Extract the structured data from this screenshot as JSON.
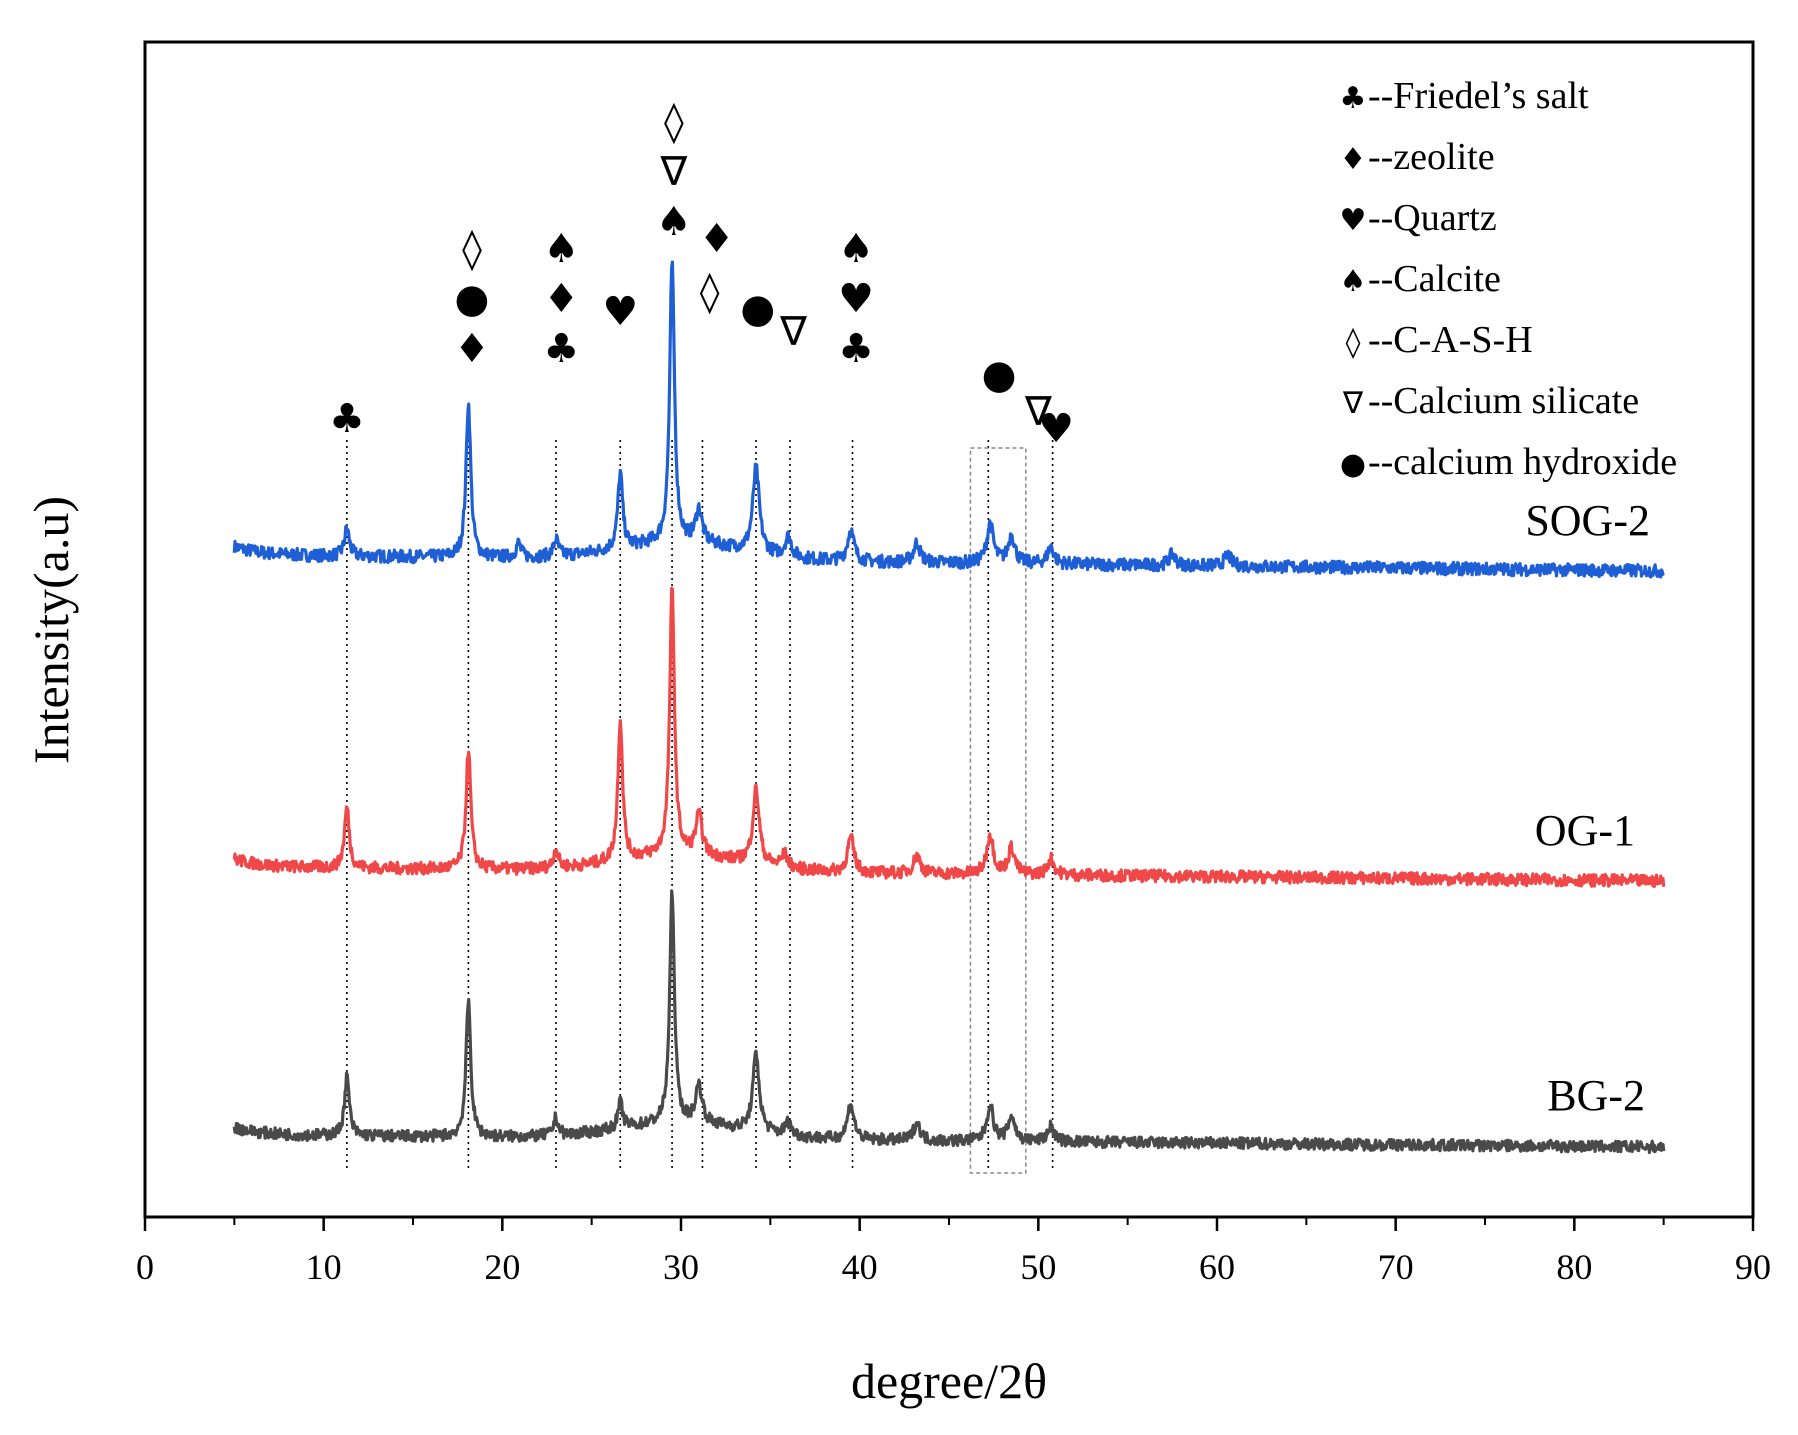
{
  "chart_data": {
    "type": "line",
    "title": "",
    "xlabel": "degree/2θ",
    "ylabel": "Intensity(a.u)",
    "xlim": [
      0,
      90
    ],
    "xticks": [
      0,
      10,
      20,
      30,
      40,
      50,
      60,
      70,
      80,
      90
    ],
    "xtick_labels": [
      "0",
      "10",
      "20",
      "30",
      "40",
      "50",
      "60",
      "70",
      "80",
      "90"
    ],
    "x_range": [
      5,
      85
    ],
    "colors": {
      "SOG-2": "#1f5fd6",
      "OG-1": "#f04848",
      "BG-2": "#4a4a4a",
      "axis": "#000000",
      "guide": "#000000",
      "box": "#888888"
    },
    "series": [
      {
        "name": "SOG-2",
        "peaks": [
          [
            11.3,
            0.1
          ],
          [
            18.1,
            0.55
          ],
          [
            20.9,
            0.05
          ],
          [
            23.0,
            0.06
          ],
          [
            26.6,
            0.27
          ],
          [
            29.5,
            1.0
          ],
          [
            31.0,
            0.12
          ],
          [
            34.2,
            0.3
          ],
          [
            36.0,
            0.07
          ],
          [
            39.5,
            0.11
          ],
          [
            43.2,
            0.07
          ],
          [
            47.3,
            0.14
          ],
          [
            48.5,
            0.1
          ],
          [
            50.7,
            0.06
          ],
          [
            57.5,
            0.04
          ],
          [
            60.6,
            0.04
          ]
        ]
      },
      {
        "name": "OG-1",
        "peaks": [
          [
            11.3,
            0.23
          ],
          [
            18.1,
            0.45
          ],
          [
            23.0,
            0.07
          ],
          [
            26.6,
            0.53
          ],
          [
            29.5,
            1.0
          ],
          [
            31.0,
            0.15
          ],
          [
            34.2,
            0.28
          ],
          [
            35.8,
            0.05
          ],
          [
            39.5,
            0.13
          ],
          [
            43.2,
            0.07
          ],
          [
            47.3,
            0.15
          ],
          [
            48.5,
            0.1
          ],
          [
            50.7,
            0.06
          ]
        ]
      },
      {
        "name": "BG-2",
        "peaks": [
          [
            11.3,
            0.23
          ],
          [
            18.1,
            0.53
          ],
          [
            23.0,
            0.07
          ],
          [
            26.6,
            0.1
          ],
          [
            29.5,
            0.9
          ],
          [
            31.0,
            0.15
          ],
          [
            34.2,
            0.3
          ],
          [
            36.0,
            0.05
          ],
          [
            39.5,
            0.14
          ],
          [
            43.2,
            0.07
          ],
          [
            47.3,
            0.14
          ],
          [
            48.5,
            0.1
          ],
          [
            50.7,
            0.06
          ]
        ]
      }
    ],
    "series_labels": [
      "SOG-2",
      "OG-1",
      "BG-2"
    ],
    "legend": [
      {
        "symbol": "♣",
        "text": "--Friedel’s salt"
      },
      {
        "symbol": "♦",
        "text": "--zeolite"
      },
      {
        "symbol": "♥",
        "text": "--Quartz"
      },
      {
        "symbol": "♠",
        "text": "--Calcite"
      },
      {
        "symbol": "◊",
        "text": "--C-A-S-H"
      },
      {
        "symbol": "∇",
        "text": "--Calcium silicate"
      },
      {
        "symbol": "●",
        "text": "--calcium hydroxide"
      }
    ],
    "legend_position": "top-right",
    "guide_lines_at": [
      11.3,
      18.1,
      23.0,
      26.6,
      29.5,
      31.2,
      34.2,
      36.1,
      39.6,
      47.2,
      50.8
    ],
    "highlight_box_range": [
      46.2,
      49.3
    ],
    "peak_markers": [
      {
        "x": 11.3,
        "symbols": [
          "♣"
        ]
      },
      {
        "x": 18.3,
        "symbols": [
          "◊",
          "●",
          "♦"
        ]
      },
      {
        "x": 23.3,
        "symbols": [
          "♠",
          "♦",
          "♣"
        ]
      },
      {
        "x": 26.6,
        "symbols": [
          "♥"
        ]
      },
      {
        "x": 29.6,
        "symbols": [
          "◊",
          "∇",
          "♠"
        ]
      },
      {
        "x": 32.0,
        "symbols": [
          "♦"
        ]
      },
      {
        "x": 31.6,
        "symbols": [
          "◊"
        ]
      },
      {
        "x": 34.3,
        "symbols": [
          "●"
        ]
      },
      {
        "x": 36.3,
        "symbols": [
          "∇"
        ]
      },
      {
        "x": 39.8,
        "symbols": [
          "♠",
          "♥",
          "♣"
        ]
      },
      {
        "x": 47.8,
        "symbols": [
          "●"
        ]
      },
      {
        "x": 50.0,
        "symbols": [
          "∇"
        ]
      },
      {
        "x": 51.0,
        "symbols": [
          "♥"
        ]
      }
    ]
  }
}
